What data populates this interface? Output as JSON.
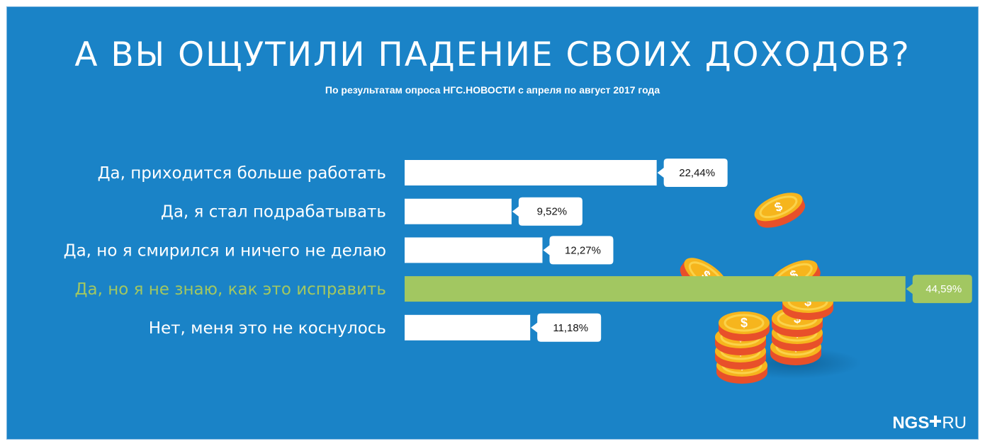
{
  "chart_data": {
    "type": "bar",
    "orientation": "horizontal",
    "title": "А ВЫ ОЩУТИЛИ ПАДЕНИЕ СВОИХ ДОХОДОВ?",
    "subtitle": "По результатам опроса НГС.НОВОСТИ с апреля по август 2017 года",
    "categories": [
      "Да, приходится больше работать",
      "Да, я стал подрабатывать",
      "Да, но я смирился и ничего не делаю",
      "Да, но я не знаю, как это исправить",
      "Нет, меня это не коснулось"
    ],
    "values": [
      22.44,
      9.52,
      12.27,
      44.59,
      11.18
    ],
    "value_labels": [
      "22,44%",
      "9,52%",
      "12,27%",
      "44,59%",
      "11,18%"
    ],
    "unit": "%",
    "highlight_index": 3,
    "xlim": [
      0,
      50
    ],
    "grid": false,
    "colors": {
      "background": "#1a83c7",
      "bar": "#ffffff",
      "highlight_bar": "#a2c761",
      "label_text": "#ffffff",
      "highlight_text": "#a2c761",
      "value_text": "#111111",
      "value_text_highlight": "#ffffff"
    }
  },
  "logo": {
    "left": "NGS",
    "right": "RU"
  },
  "decoration": {
    "icon": "coin-stack-icon"
  }
}
